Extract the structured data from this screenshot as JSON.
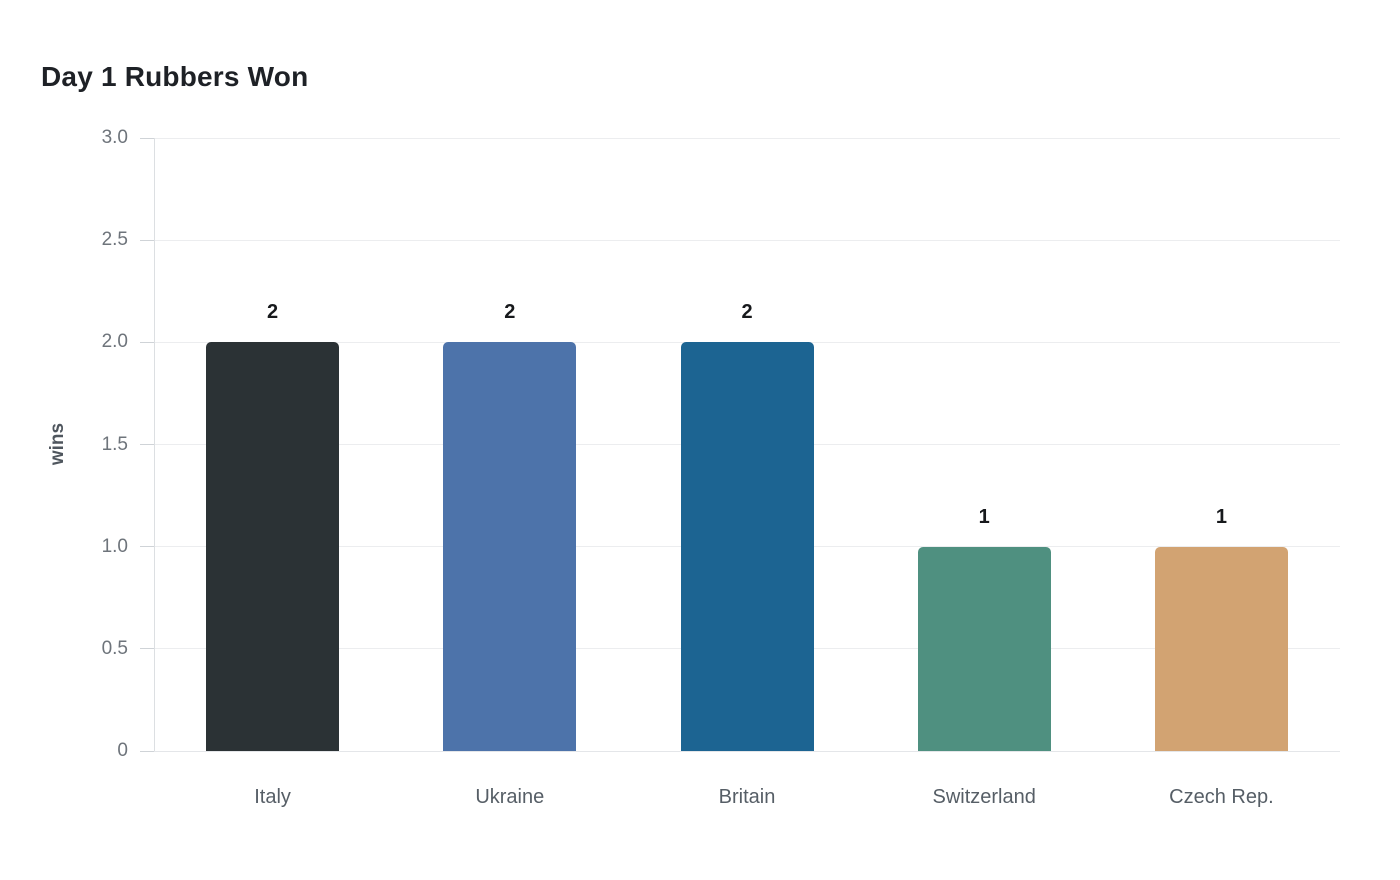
{
  "page": {
    "background": "#ffffff"
  },
  "chart_data": {
    "type": "bar",
    "title": "Day 1 Rubbers Won",
    "xlabel": "",
    "ylabel": "wins",
    "categories": [
      "Italy",
      "Ukraine",
      "Britain",
      "Switzerland",
      "Czech Rep."
    ],
    "values": [
      2,
      2,
      2,
      1,
      1
    ],
    "value_labels": [
      "2",
      "2",
      "2",
      "1",
      "1"
    ],
    "bar_colors": [
      "#2b3235",
      "#4d73aa",
      "#1c6492",
      "#4f9080",
      "#d2a372"
    ],
    "ylim": [
      0,
      3
    ],
    "yticks": [
      {
        "value": 0,
        "label": "0"
      },
      {
        "value": 0.5,
        "label": "0.5"
      },
      {
        "value": 1,
        "label": "1.0"
      },
      {
        "value": 1.5,
        "label": "1.5"
      },
      {
        "value": 2,
        "label": "2.0"
      },
      {
        "value": 2.5,
        "label": "2.5"
      },
      {
        "value": 3,
        "label": "3.0"
      }
    ],
    "grid": true,
    "legend": false,
    "colors": {
      "title": "#1e2126",
      "axis_title": "#4f565e",
      "ytick_label": "#6e747b",
      "xtick_label": "#565e66",
      "value_label": "#17191c",
      "gridline": "#ecedef",
      "zeroline": "#e4e6e9",
      "tick": "#cfd3d7",
      "axis_line": "#dcdfe2"
    }
  }
}
